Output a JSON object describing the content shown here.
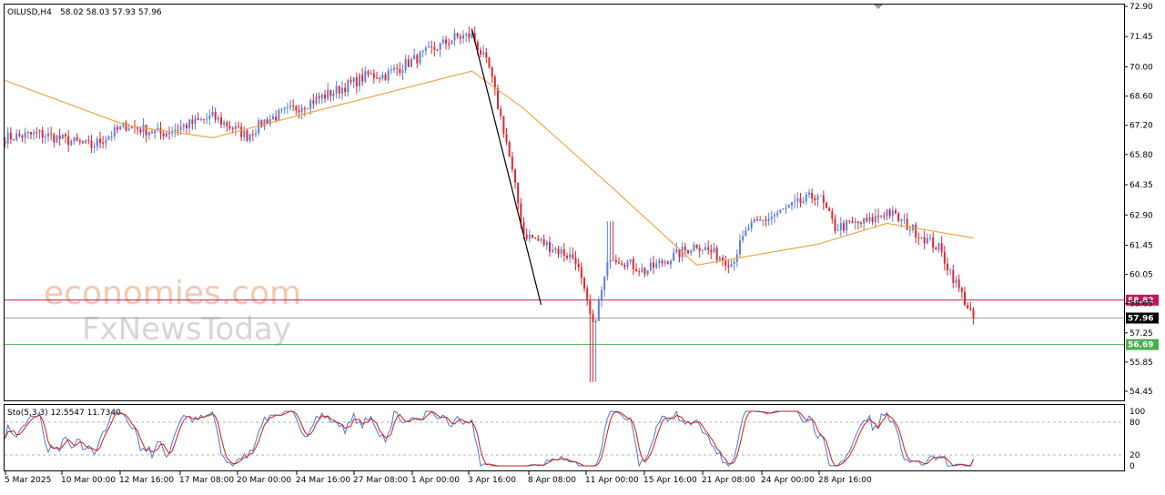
{
  "header": {
    "symbol": "OILUSD,H4",
    "ohlc": "58.02 58.03 57.93 57.96"
  },
  "watermark": {
    "brand": "economies.com",
    "sub": "FxNewsToday"
  },
  "colors": {
    "bull": "#5b7fe0",
    "bear": "#e0272b",
    "ma": "#f0a64a",
    "trendline": "#000000",
    "resistance": "#c2185b",
    "support": "#4caf50",
    "current": "#a0a0a0",
    "stoch_main": "#4a79d6",
    "stoch_signal": "#d11a1a"
  },
  "chart_data": [
    {
      "type": "candlestick",
      "title": "OILUSD,H4",
      "ylim": [
        54.42,
        72.9
      ],
      "y_ticks": [
        "72.90",
        "71.45",
        "70.00",
        "68.60",
        "67.20",
        "65.80",
        "64.35",
        "62.90",
        "61.45",
        "60.05",
        "58.65",
        "57.25",
        "55.85",
        "54.45"
      ],
      "x_ticks": [
        "5 Mar 2025",
        "10 Mar 00:00",
        "12 Mar 16:00",
        "17 Mar 08:00",
        "20 Mar 00:00",
        "24 Mar 16:00",
        "27 Mar 08:00",
        "1 Apr 00:00",
        "3 Apr 16:00",
        "8 Apr 08:00",
        "11 Apr 00:00",
        "15 Apr 16:00",
        "21 Apr 08:00",
        "24 Apr 00:00",
        "28 Apr 16:00"
      ],
      "series_anchors": [
        {
          "date": "5 Mar",
          "close": 66.6
        },
        {
          "date": "7 Mar",
          "close": 66.8
        },
        {
          "date": "10 Mar",
          "close": 66.2
        },
        {
          "date": "12 Mar",
          "close": 67.2
        },
        {
          "date": "14 Mar",
          "close": 66.8
        },
        {
          "date": "17 Mar",
          "close": 67.6
        },
        {
          "date": "19 Mar",
          "close": 66.7
        },
        {
          "date": "20 Mar",
          "close": 67.4
        },
        {
          "date": "24 Mar",
          "close": 68.8
        },
        {
          "date": "26 Mar",
          "close": 69.6
        },
        {
          "date": "27 Mar",
          "close": 69.6
        },
        {
          "date": "31 Mar",
          "close": 71.4
        },
        {
          "date": "1 Apr",
          "close": 71.5
        },
        {
          "date": "2 Apr",
          "close": 69.9
        },
        {
          "date": "3 Apr",
          "close": 66.4
        },
        {
          "date": "4 Apr",
          "close": 62.0
        },
        {
          "date": "7 Apr",
          "close": 60.8
        },
        {
          "date": "8 Apr",
          "close": 57.5
        },
        {
          "date": "9 Apr",
          "close": 61.0
        },
        {
          "date": "11 Apr",
          "close": 60.2
        },
        {
          "date": "14 Apr",
          "close": 61.5
        },
        {
          "date": "16 Apr",
          "close": 60.6
        },
        {
          "date": "17 Apr",
          "close": 62.3
        },
        {
          "date": "21 Apr",
          "close": 63.9
        },
        {
          "date": "22 Apr",
          "close": 62.3
        },
        {
          "date": "24 Apr",
          "close": 62.6
        },
        {
          "date": "25 Apr",
          "close": 63.1
        },
        {
          "date": "28 Apr",
          "close": 61.3
        },
        {
          "date": "30 Apr",
          "close": 57.96
        }
      ],
      "moving_average_anchors": [
        {
          "date": "5 Mar",
          "value": 69.35
        },
        {
          "date": "12 Mar",
          "value": 67.2
        },
        {
          "date": "17 Mar",
          "value": 66.6
        },
        {
          "date": "24 Mar",
          "value": 68.1
        },
        {
          "date": "1 Apr",
          "value": 69.8
        },
        {
          "date": "4 Apr",
          "value": 68.0
        },
        {
          "date": "9 Apr",
          "value": 64.3
        },
        {
          "date": "14 Apr",
          "value": 60.5
        },
        {
          "date": "21 Apr",
          "value": 61.5
        },
        {
          "date": "25 Apr",
          "value": 62.5
        },
        {
          "date": "30 Apr",
          "value": 61.8
        }
      ],
      "trendline": {
        "from": {
          "date": "1 Apr",
          "value": 71.8
        },
        "to": {
          "date": "5 May",
          "value": 58.6
        }
      },
      "levels": [
        {
          "name": "resistance",
          "value": 58.82,
          "label": "58.82"
        },
        {
          "name": "current",
          "value": 57.96,
          "label": "57.96"
        },
        {
          "name": "support",
          "value": 56.69,
          "label": "56.69"
        }
      ],
      "grid": false
    },
    {
      "type": "line",
      "title": "Sto(5,3,3) 12.5547 11.7340",
      "ylim": [
        0,
        100
      ],
      "y_ticks": [
        "100",
        "80",
        "20",
        "0"
      ],
      "levels": [
        80,
        20
      ],
      "series": [
        {
          "name": "main",
          "value": 12.5547
        },
        {
          "name": "signal",
          "value": 11.734
        }
      ]
    }
  ]
}
